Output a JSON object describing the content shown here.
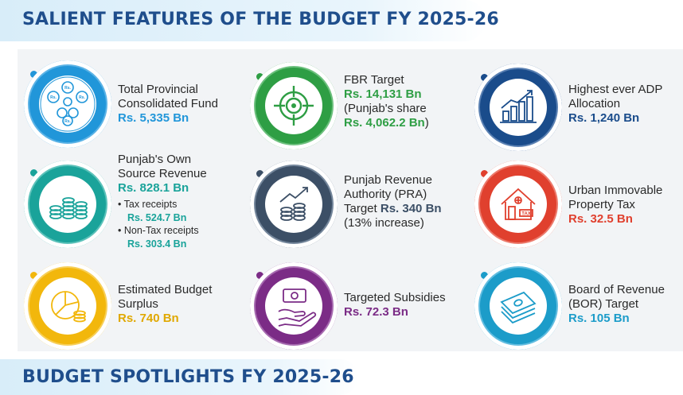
{
  "header": {
    "title": "SALIENT FEATURES OF THE BUDGET FY 2025-26"
  },
  "footer": {
    "title": "BUDGET SPOTLIGHTS FY 2025-26"
  },
  "colors": {
    "blue": "#2196d9",
    "green": "#2e9e44",
    "navy": "#1a4c8b",
    "teal": "#1aa39a",
    "slate": "#3c4f66",
    "red": "#e0402e",
    "yellow": "#f2b70c",
    "purple": "#7b2c86",
    "cyan": "#1c9cc9"
  },
  "items": {
    "fund": {
      "icon": "money-bags-icon",
      "line1": "Total Provincial",
      "line2": "Consolidated Fund",
      "value": "Rs. 5,335 Bn"
    },
    "fbr": {
      "icon": "target-icon",
      "line1": "FBR Target",
      "value1": "Rs. 14,131 Bn",
      "line2": "(Punjab's share",
      "value2": "Rs. 4,062.2 Bn",
      "close": ")"
    },
    "adp": {
      "icon": "bar-growth-icon",
      "line1": "Highest ever ADP",
      "line2": "Allocation",
      "value": "Rs. 1,240 Bn"
    },
    "own": {
      "icon": "coin-stacks-icon",
      "line1": "Punjab's Own",
      "line2": "Source Revenue",
      "value": "Rs. 828.1 Bn",
      "tax_label": "• Tax receipts",
      "tax_value": "Rs. 524.7 Bn",
      "nontax_label": "• Non-Tax receipts",
      "nontax_value": "Rs. 303.4 Bn"
    },
    "pra": {
      "icon": "coins-growth-icon",
      "line1": "Punjab Revenue",
      "line2": "Authority (PRA)",
      "line3_prefix": "Target ",
      "value": "Rs. 340 Bn",
      "line4": "(13% increase)"
    },
    "urban": {
      "icon": "house-tax-icon",
      "line1": "Urban Immovable",
      "line2": "Property Tax",
      "value": "Rs. 32.5 Bn"
    },
    "surplus": {
      "icon": "pie-chart-coins-icon",
      "line1": "Estimated Budget",
      "line2": "Surplus",
      "value": "Rs. 740 Bn"
    },
    "subsidies": {
      "icon": "hand-cash-icon",
      "line1": "Targeted Subsidies",
      "value": "Rs. 72.3 Bn"
    },
    "bor": {
      "icon": "cash-stack-icon",
      "line1": "Board of Revenue",
      "line2": "(BOR) Target",
      "value": "Rs. 105 Bn"
    }
  }
}
